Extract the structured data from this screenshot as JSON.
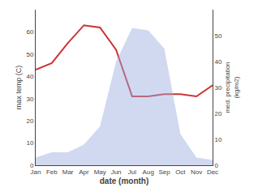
{
  "chart_data": {
    "type": "line",
    "xlabel": "date (month)",
    "ylabel": "max temp (C)",
    "y2label": "med. precipitation\n(kg/m2)",
    "categories": [
      "Jan",
      "Feb",
      "Mar",
      "Apr",
      "May",
      "Jun",
      "Jul",
      "Aug",
      "Sep",
      "Oct",
      "Nov",
      "Dec"
    ],
    "series": [
      {
        "type": "area",
        "axis": "y2",
        "color": "#99aadd",
        "values": [
          3,
          5,
          5,
          8,
          15,
          40,
          53,
          52,
          45,
          12,
          3,
          2
        ]
      },
      {
        "type": "line",
        "color": "#cc3333",
        "values": [
          43,
          46,
          55,
          63,
          62,
          52,
          31,
          31,
          32,
          32,
          31,
          36
        ]
      }
    ],
    "ylim": [
      0,
      70
    ],
    "yticks": [
      0,
      10,
      20,
      30,
      40,
      50,
      60
    ],
    "y2lim": [
      0,
      60
    ],
    "y2ticks": [
      0,
      10,
      20,
      30,
      40,
      50
    ],
    "grid": false
  }
}
